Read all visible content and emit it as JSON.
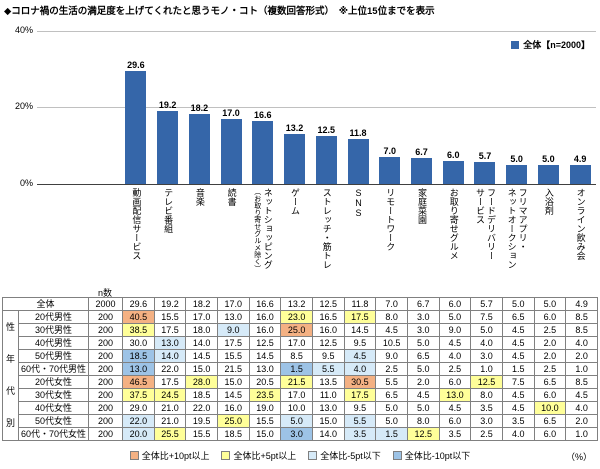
{
  "title": "◆コロナ禍の生活の満足度を上げてくれたと思うモノ・コト（複数回答形式）　※上位15位までを表示",
  "chart_data": {
    "type": "bar",
    "legend": "全体【n=2000】",
    "bar_color": "#3566A9",
    "ylim": [
      0,
      40
    ],
    "yticks": [
      "40%",
      "20%",
      "0%"
    ],
    "categories": [
      "動画配信サービス",
      "テレビ番組",
      "音楽",
      "読書",
      "ネットショッピング（お取り寄せグルメ除く）",
      "ゲーム",
      "ストレッチ・筋トレ",
      "SNS",
      "リモートワーク",
      "家庭菜園",
      "お取り寄せグルメ",
      "フードデリバリーサービス",
      "フリマアプリ・ネットオークション",
      "入浴剤",
      "オンライン飲み会"
    ],
    "category_lines": [
      [
        "動画配信サービス"
      ],
      [
        "テレビ番組"
      ],
      [
        "音楽"
      ],
      [
        "読書"
      ],
      [
        "ネットショッピング",
        "（お取り寄せグルメ除く）"
      ],
      [
        "ゲーム"
      ],
      [
        "ストレッチ・筋トレ"
      ],
      [
        "SNS"
      ],
      [
        "リモートワーク"
      ],
      [
        "家庭菜園"
      ],
      [
        "お取り寄せグルメ"
      ],
      [
        "フードデリバリー",
        "サービス"
      ],
      [
        "フリマアプリ・",
        "ネットオークション"
      ],
      [
        "入浴剤"
      ],
      [
        "オンライン飲み会"
      ]
    ],
    "values": [
      29.6,
      19.2,
      18.2,
      17.0,
      16.6,
      13.2,
      12.5,
      11.8,
      7.0,
      6.7,
      6.0,
      5.7,
      5.0,
      5.0,
      4.9
    ]
  },
  "table": {
    "n_header": "n数",
    "row_group_label": "性年代別",
    "unit_note": "（%）",
    "rows": [
      {
        "label": "全体",
        "n": 2000,
        "values": [
          29.6,
          19.2,
          18.2,
          17.0,
          16.6,
          13.2,
          12.5,
          11.8,
          7.0,
          6.7,
          6.0,
          5.7,
          5.0,
          5.0,
          4.9
        ]
      },
      {
        "label": "20代男性",
        "n": 200,
        "values": [
          40.5,
          15.5,
          17.0,
          13.0,
          16.0,
          23.0,
          16.5,
          17.5,
          8.0,
          3.0,
          5.0,
          7.5,
          6.5,
          6.0,
          8.5
        ]
      },
      {
        "label": "30代男性",
        "n": 200,
        "values": [
          38.5,
          17.5,
          18.0,
          9.0,
          16.0,
          25.0,
          16.0,
          14.5,
          4.5,
          3.0,
          9.0,
          5.0,
          4.5,
          2.5,
          8.5
        ]
      },
      {
        "label": "40代男性",
        "n": 200,
        "values": [
          30.0,
          13.0,
          14.0,
          17.5,
          12.5,
          17.0,
          12.5,
          9.5,
          10.5,
          5.0,
          4.5,
          4.0,
          4.5,
          2.0,
          4.0
        ]
      },
      {
        "label": "50代男性",
        "n": 200,
        "values": [
          18.5,
          14.0,
          14.5,
          15.5,
          14.5,
          8.5,
          9.5,
          4.5,
          9.0,
          6.5,
          4.0,
          3.0,
          4.5,
          2.0,
          2.0
        ]
      },
      {
        "label": "60代・70代男性",
        "n": 200,
        "values": [
          13.0,
          22.0,
          15.0,
          21.5,
          13.0,
          1.5,
          5.5,
          4.0,
          2.5,
          5.0,
          2.5,
          1.0,
          1.5,
          2.5,
          1.0
        ]
      },
      {
        "label": "20代女性",
        "n": 200,
        "values": [
          46.5,
          17.5,
          28.0,
          15.0,
          20.5,
          21.5,
          13.5,
          30.5,
          5.5,
          2.0,
          6.0,
          12.5,
          7.5,
          6.5,
          8.5
        ]
      },
      {
        "label": "30代女性",
        "n": 200,
        "values": [
          37.5,
          24.5,
          18.5,
          14.5,
          23.5,
          17.0,
          11.0,
          17.5,
          6.5,
          4.5,
          13.0,
          8.0,
          4.5,
          6.0,
          4.5
        ]
      },
      {
        "label": "40代女性",
        "n": 200,
        "values": [
          29.0,
          21.0,
          22.0,
          16.0,
          19.0,
          10.0,
          13.0,
          9.5,
          5.0,
          5.0,
          4.5,
          3.5,
          4.5,
          10.0,
          4.0
        ]
      },
      {
        "label": "50代女性",
        "n": 200,
        "values": [
          22.0,
          21.0,
          19.5,
          25.0,
          15.5,
          5.0,
          15.0,
          5.5,
          5.0,
          8.0,
          6.0,
          3.0,
          3.5,
          6.5,
          2.0
        ]
      },
      {
        "label": "60代・70代女性",
        "n": 200,
        "values": [
          20.0,
          25.5,
          15.5,
          18.5,
          15.0,
          3.0,
          14.0,
          3.5,
          1.5,
          12.5,
          3.5,
          2.5,
          4.0,
          6.0,
          1.0
        ]
      }
    ]
  },
  "legend_thresholds": [
    {
      "label": "全体比+10pt以上",
      "color": "#F4B183",
      "diff": 10
    },
    {
      "label": "全体比+5pt以上",
      "color": "#FFFF99",
      "diff": 5
    },
    {
      "label": "全体比-5pt以下",
      "color": "#D6EAF8",
      "diff": -5
    },
    {
      "label": "全体比-10pt以下",
      "color": "#9DC3E6",
      "diff": -10
    }
  ]
}
